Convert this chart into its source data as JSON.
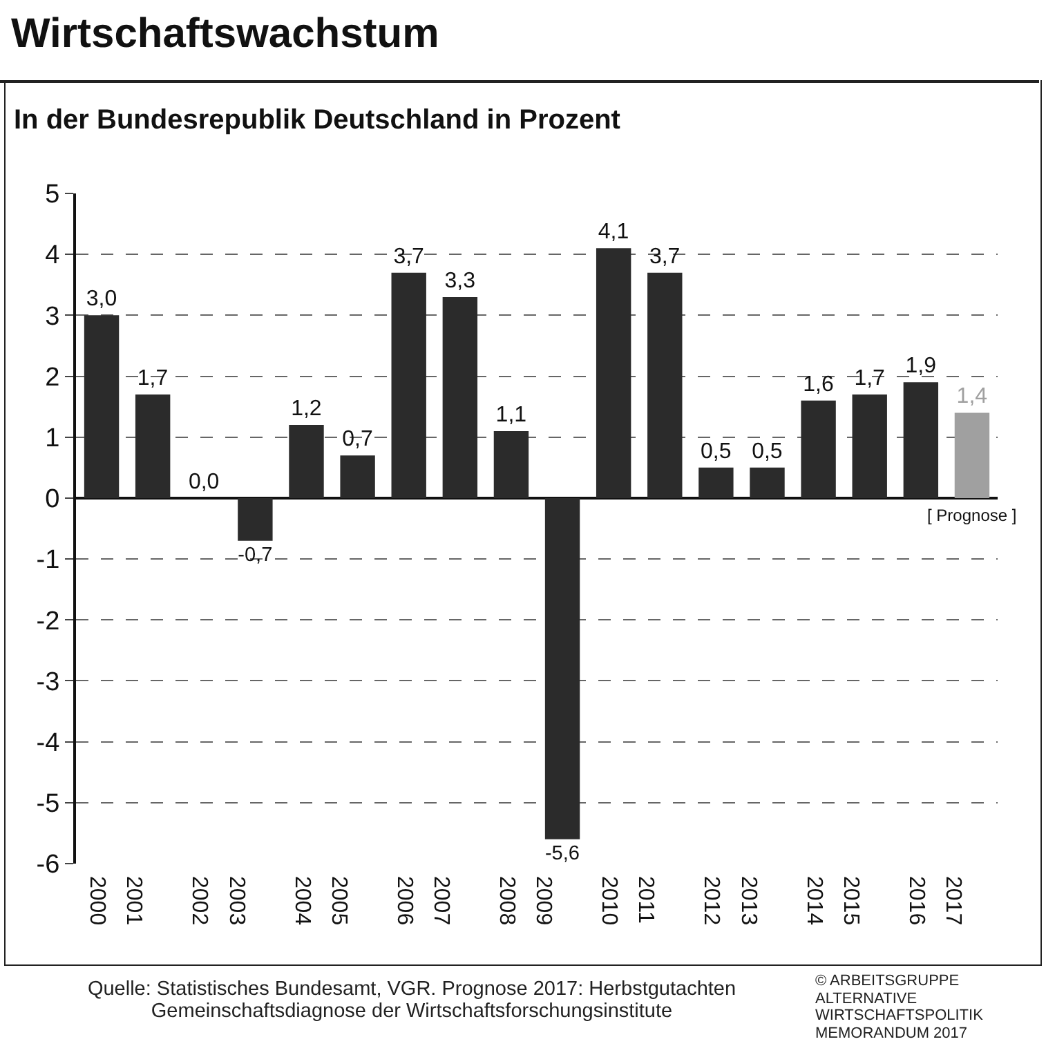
{
  "chart_data": {
    "type": "bar",
    "title": "Wirtschaftswachstum",
    "subtitle": "In der Bundesrepublik Deutschland in Prozent",
    "categories": [
      "2000",
      "2001",
      "2002",
      "2003",
      "2004",
      "2005",
      "2006",
      "2007",
      "2008",
      "2009",
      "2010",
      "2011",
      "2012",
      "2013",
      "2014",
      "2015",
      "2016",
      "2017"
    ],
    "values": [
      3.0,
      1.7,
      0.0,
      -0.7,
      1.2,
      0.7,
      3.7,
      3.3,
      1.1,
      -5.6,
      4.1,
      3.7,
      0.5,
      0.5,
      1.6,
      1.7,
      1.9,
      1.4
    ],
    "value_labels": [
      "3,0",
      "1,7",
      "0,0",
      "-0,7",
      "1,2",
      "0,7",
      "3,7",
      "3,3",
      "1,1",
      "-5,6",
      "4,1",
      "3,7",
      "0,5",
      "0,5",
      "1,6",
      "1,7",
      "1,9",
      "1,4"
    ],
    "colors": [
      "#2b2b2b",
      "#2b2b2b",
      "#2b2b2b",
      "#2b2b2b",
      "#2b2b2b",
      "#2b2b2b",
      "#2b2b2b",
      "#2b2b2b",
      "#2b2b2b",
      "#2b2b2b",
      "#2b2b2b",
      "#2b2b2b",
      "#2b2b2b",
      "#2b2b2b",
      "#2b2b2b",
      "#2b2b2b",
      "#2b2b2b",
      "#a0a0a0"
    ],
    "ylim": [
      -6,
      5
    ],
    "yticks": [
      -6,
      -5,
      -4,
      -3,
      -2,
      -1,
      0,
      1,
      2,
      3,
      4,
      5
    ],
    "grid": "y",
    "legend": false,
    "annotations": [
      {
        "text": "[ Prognose ]",
        "x": "2017",
        "y": 0
      },
      "Quelle: Statistisches Bundesamt, VGR. Prognose 2017: Herbstgutachten Gemeinschaftsdiagnose der Wirtschaftsforschungsinstitute",
      "© ARBEITSGRUPPE ALTERNATIVE WIRTSCHAFTSPOLITIK MEMORANDUM 2017"
    ]
  }
}
